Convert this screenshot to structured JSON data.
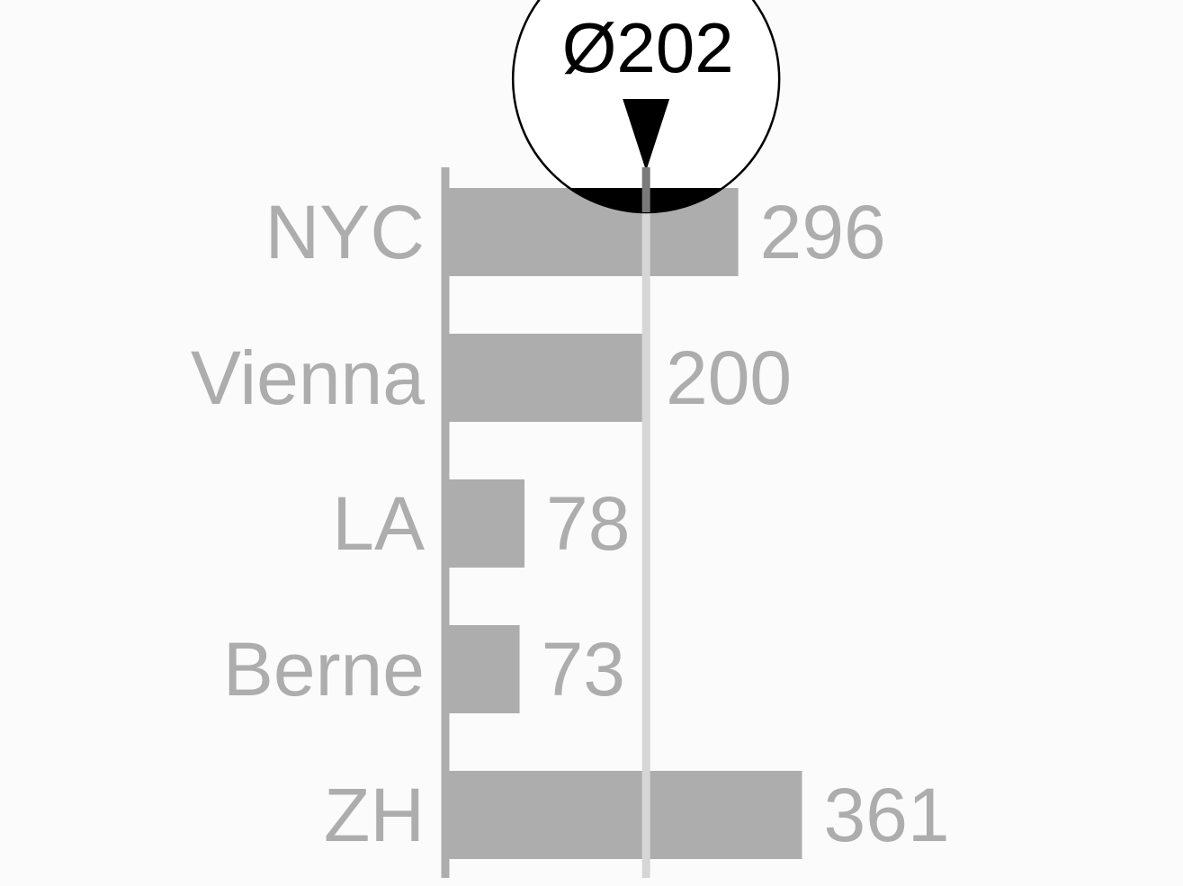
{
  "chart_data": {
    "type": "bar",
    "orientation": "horizontal",
    "categories": [
      "NYC",
      "Vienna",
      "LA",
      "Berne",
      "ZH"
    ],
    "values": [
      296,
      200,
      78,
      73,
      361
    ],
    "value_labels": [
      "296",
      "200",
      "78",
      "73",
      "361"
    ],
    "average": 202,
    "average_label": "Ø202",
    "title": "",
    "xlabel": "",
    "ylabel": "",
    "grid": false,
    "legend": "none",
    "colors": {
      "bar": "#adadad",
      "label": "#adadad",
      "axis": "#adadad",
      "average_line": "#d6d6d6",
      "marker_fill": "#ffffff",
      "marker_stroke": "#000000",
      "background": "#fbfbfb"
    }
  }
}
